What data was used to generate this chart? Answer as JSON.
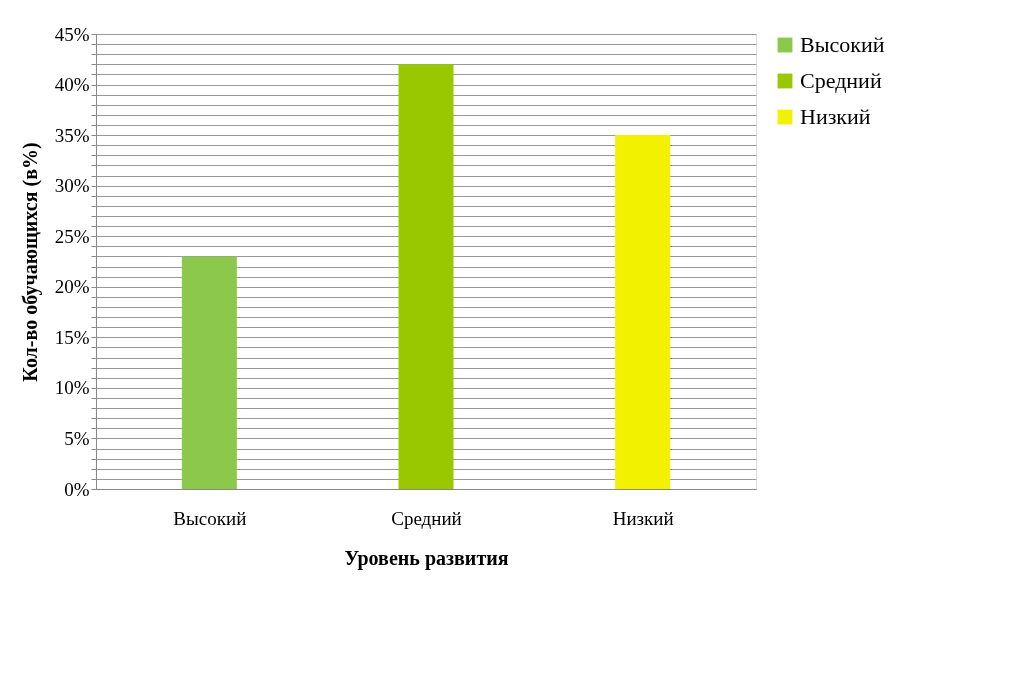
{
  "chart_data": {
    "type": "bar",
    "xlabel": "Уровень развития",
    "ylabel": "Кол-во обучающихся (в%)",
    "categories": [
      "Высокий",
      "Средний",
      "Низкий"
    ],
    "series": [
      {
        "name": "Высокий",
        "color": "#8cc84b",
        "values": [
          23,
          null,
          null
        ]
      },
      {
        "name": "Средний",
        "color": "#99c800",
        "values": [
          null,
          42,
          null
        ]
      },
      {
        "name": "Низкий",
        "color": "#f2f200",
        "values": [
          null,
          null,
          35
        ]
      }
    ],
    "ylim": [
      0,
      45
    ],
    "yticks": [
      {
        "value": 0,
        "label": "0%"
      },
      {
        "value": 1,
        "label": null
      },
      {
        "value": 2,
        "label": null
      },
      {
        "value": 3,
        "label": null
      },
      {
        "value": 4,
        "label": null
      },
      {
        "value": 5,
        "label": "5%"
      },
      {
        "value": 6,
        "label": null
      },
      {
        "value": 7,
        "label": null
      },
      {
        "value": 8,
        "label": null
      },
      {
        "value": 9,
        "label": null
      },
      {
        "value": 10,
        "label": "10%"
      },
      {
        "value": 11,
        "label": null
      },
      {
        "value": 12,
        "label": null
      },
      {
        "value": 13,
        "label": null
      },
      {
        "value": 14,
        "label": null
      },
      {
        "value": 15,
        "label": "15%"
      },
      {
        "value": 16,
        "label": null
      },
      {
        "value": 17,
        "label": null
      },
      {
        "value": 18,
        "label": null
      },
      {
        "value": 19,
        "label": null
      },
      {
        "value": 20,
        "label": "20%"
      },
      {
        "value": 21,
        "label": null
      },
      {
        "value": 22,
        "label": null
      },
      {
        "value": 23,
        "label": null
      },
      {
        "value": 24,
        "label": null
      },
      {
        "value": 25,
        "label": "25%"
      },
      {
        "value": 26,
        "label": null
      },
      {
        "value": 27,
        "label": null
      },
      {
        "value": 28,
        "label": null
      },
      {
        "value": 29,
        "label": null
      },
      {
        "value": 30,
        "label": "30%"
      },
      {
        "value": 31,
        "label": null
      },
      {
        "value": 32,
        "label": null
      },
      {
        "value": 33,
        "label": null
      },
      {
        "value": 34,
        "label": null
      },
      {
        "value": 35,
        "label": "35%"
      },
      {
        "value": 36,
        "label": null
      },
      {
        "value": 37,
        "label": null
      },
      {
        "value": 38,
        "label": null
      },
      {
        "value": 39,
        "label": null
      },
      {
        "value": 40,
        "label": "40%"
      },
      {
        "value": 41,
        "label": null
      },
      {
        "value": 42,
        "label": null
      },
      {
        "value": 43,
        "label": null
      },
      {
        "value": 44,
        "label": null
      },
      {
        "value": 45,
        "label": "45%"
      }
    ],
    "grid": "y",
    "legend": "right"
  }
}
